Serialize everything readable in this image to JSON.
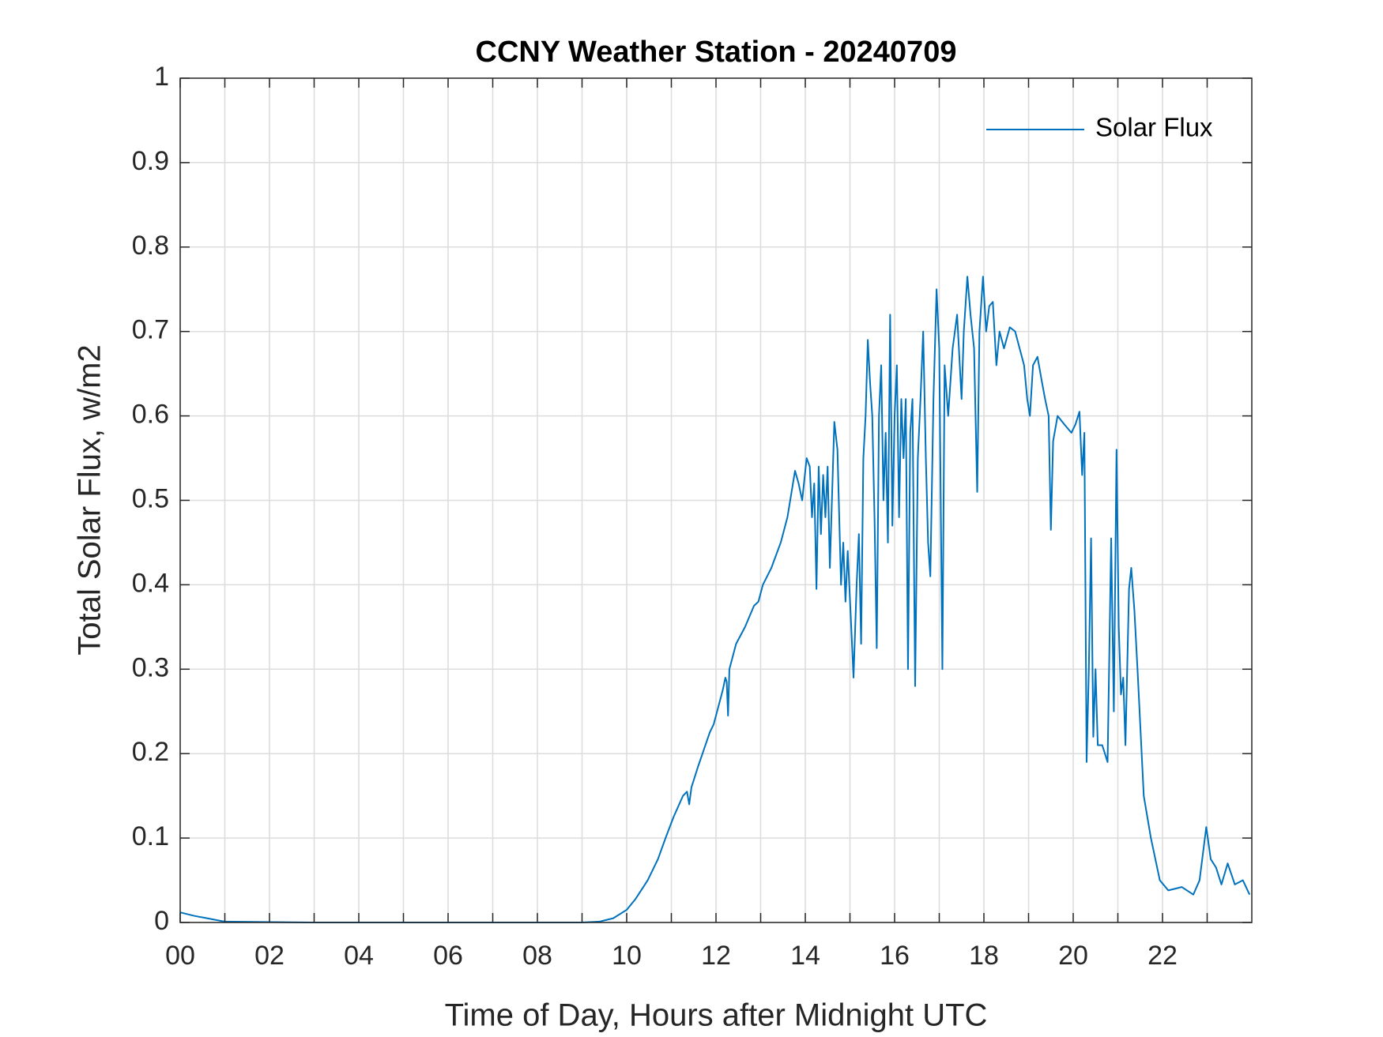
{
  "chart_data": {
    "type": "line",
    "title": "CCNY Weather Station - 20240709",
    "x_label": "Time of Day, Hours after Midnight UTC",
    "y_label": "Total Solar Flux, w/m2",
    "xlim": [
      0,
      24
    ],
    "ylim": [
      0,
      1
    ],
    "xticks": [
      {
        "value": 0,
        "label": "00"
      },
      {
        "value": 2,
        "label": "02"
      },
      {
        "value": 4,
        "label": "04"
      },
      {
        "value": 6,
        "label": "06"
      },
      {
        "value": 8,
        "label": "08"
      },
      {
        "value": 10,
        "label": "10"
      },
      {
        "value": 12,
        "label": "12"
      },
      {
        "value": 14,
        "label": "14"
      },
      {
        "value": 16,
        "label": "16"
      },
      {
        "value": 18,
        "label": "18"
      },
      {
        "value": 20,
        "label": "20"
      },
      {
        "value": 22,
        "label": "22"
      }
    ],
    "xminor_ticks": [
      1,
      3,
      5,
      7,
      9,
      11,
      13,
      15,
      17,
      19,
      21,
      23
    ],
    "yticks": [
      0,
      0.1,
      0.2,
      0.3,
      0.4,
      0.5,
      0.6,
      0.7,
      0.8,
      0.9,
      1
    ],
    "grid": true,
    "legend": "upper right",
    "series": [
      {
        "name": "Solar Flux",
        "color": "#0072BD",
        "x": [
          0,
          0.3,
          0.6,
          0.9,
          1.0,
          3.0,
          6.0,
          9.0,
          9.39,
          9.7,
          10.0,
          10.2,
          10.47,
          10.7,
          10.87,
          11.05,
          11.26,
          11.35,
          11.4,
          11.45,
          11.6,
          11.86,
          11.95,
          12.05,
          12.15,
          12.21,
          12.24,
          12.27,
          12.3,
          12.45,
          12.65,
          12.85,
          12.95,
          13.05,
          13.24,
          13.45,
          13.6,
          13.77,
          13.85,
          13.93,
          14.03,
          14.1,
          14.15,
          14.2,
          14.25,
          14.3,
          14.35,
          14.4,
          14.45,
          14.5,
          14.55,
          14.65,
          14.72,
          14.8,
          14.85,
          14.9,
          14.95,
          15.02,
          15.08,
          15.15,
          15.2,
          15.25,
          15.3,
          15.35,
          15.4,
          15.45,
          15.5,
          15.55,
          15.6,
          15.65,
          15.7,
          15.75,
          15.8,
          15.85,
          15.9,
          15.95,
          16.0,
          16.05,
          16.1,
          16.15,
          16.2,
          16.25,
          16.3,
          16.35,
          16.4,
          16.46,
          16.52,
          16.58,
          16.64,
          16.7,
          16.75,
          16.8,
          16.87,
          16.94,
          17.0,
          17.07,
          17.12,
          17.2,
          17.3,
          17.4,
          17.5,
          17.55,
          17.63,
          17.7,
          17.78,
          17.85,
          17.9,
          17.98,
          18.05,
          18.12,
          18.2,
          18.28,
          18.35,
          18.45,
          18.58,
          18.7,
          18.8,
          18.9,
          18.97,
          19.03,
          19.1,
          19.2,
          19.3,
          19.37,
          19.45,
          19.5,
          19.55,
          19.65,
          19.8,
          19.96,
          20.05,
          20.14,
          20.2,
          20.25,
          20.3,
          20.35,
          20.4,
          20.45,
          20.5,
          20.55,
          20.65,
          20.77,
          20.85,
          20.91,
          20.97,
          21.02,
          21.07,
          21.12,
          21.17,
          21.25,
          21.3,
          21.37,
          21.44,
          21.58,
          21.74,
          21.94,
          22.13,
          22.43,
          22.69,
          22.83,
          22.98,
          23.08,
          23.2,
          23.32,
          23.46,
          23.62,
          23.8,
          23.95
        ],
        "values": [
          0.012,
          0.008,
          0.005,
          0.002,
          0.001,
          0,
          0,
          0,
          0.001,
          0.005,
          0.015,
          0.028,
          0.05,
          0.075,
          0.1,
          0.125,
          0.15,
          0.155,
          0.14,
          0.16,
          0.185,
          0.225,
          0.235,
          0.255,
          0.275,
          0.29,
          0.285,
          0.245,
          0.3,
          0.33,
          0.35,
          0.375,
          0.38,
          0.4,
          0.42,
          0.45,
          0.48,
          0.535,
          0.52,
          0.5,
          0.55,
          0.54,
          0.48,
          0.52,
          0.395,
          0.54,
          0.46,
          0.53,
          0.48,
          0.54,
          0.42,
          0.593,
          0.56,
          0.4,
          0.45,
          0.38,
          0.44,
          0.36,
          0.29,
          0.4,
          0.46,
          0.33,
          0.55,
          0.6,
          0.69,
          0.64,
          0.6,
          0.48,
          0.325,
          0.6,
          0.66,
          0.5,
          0.58,
          0.45,
          0.72,
          0.47,
          0.6,
          0.66,
          0.48,
          0.62,
          0.55,
          0.62,
          0.3,
          0.58,
          0.62,
          0.28,
          0.55,
          0.62,
          0.7,
          0.55,
          0.45,
          0.41,
          0.62,
          0.75,
          0.68,
          0.3,
          0.66,
          0.6,
          0.68,
          0.72,
          0.62,
          0.7,
          0.765,
          0.72,
          0.68,
          0.51,
          0.7,
          0.765,
          0.7,
          0.73,
          0.735,
          0.66,
          0.7,
          0.68,
          0.705,
          0.7,
          0.68,
          0.66,
          0.62,
          0.6,
          0.66,
          0.67,
          0.64,
          0.62,
          0.6,
          0.465,
          0.57,
          0.6,
          0.59,
          0.58,
          0.59,
          0.605,
          0.53,
          0.58,
          0.19,
          0.3,
          0.455,
          0.22,
          0.3,
          0.21,
          0.21,
          0.19,
          0.455,
          0.25,
          0.56,
          0.35,
          0.27,
          0.29,
          0.21,
          0.395,
          0.42,
          0.37,
          0.3,
          0.15,
          0.1,
          0.05,
          0.038,
          0.042,
          0.033,
          0.05,
          0.113,
          0.075,
          0.065,
          0.045,
          0.07,
          0.045,
          0.05,
          0.033
        ]
      }
    ]
  }
}
